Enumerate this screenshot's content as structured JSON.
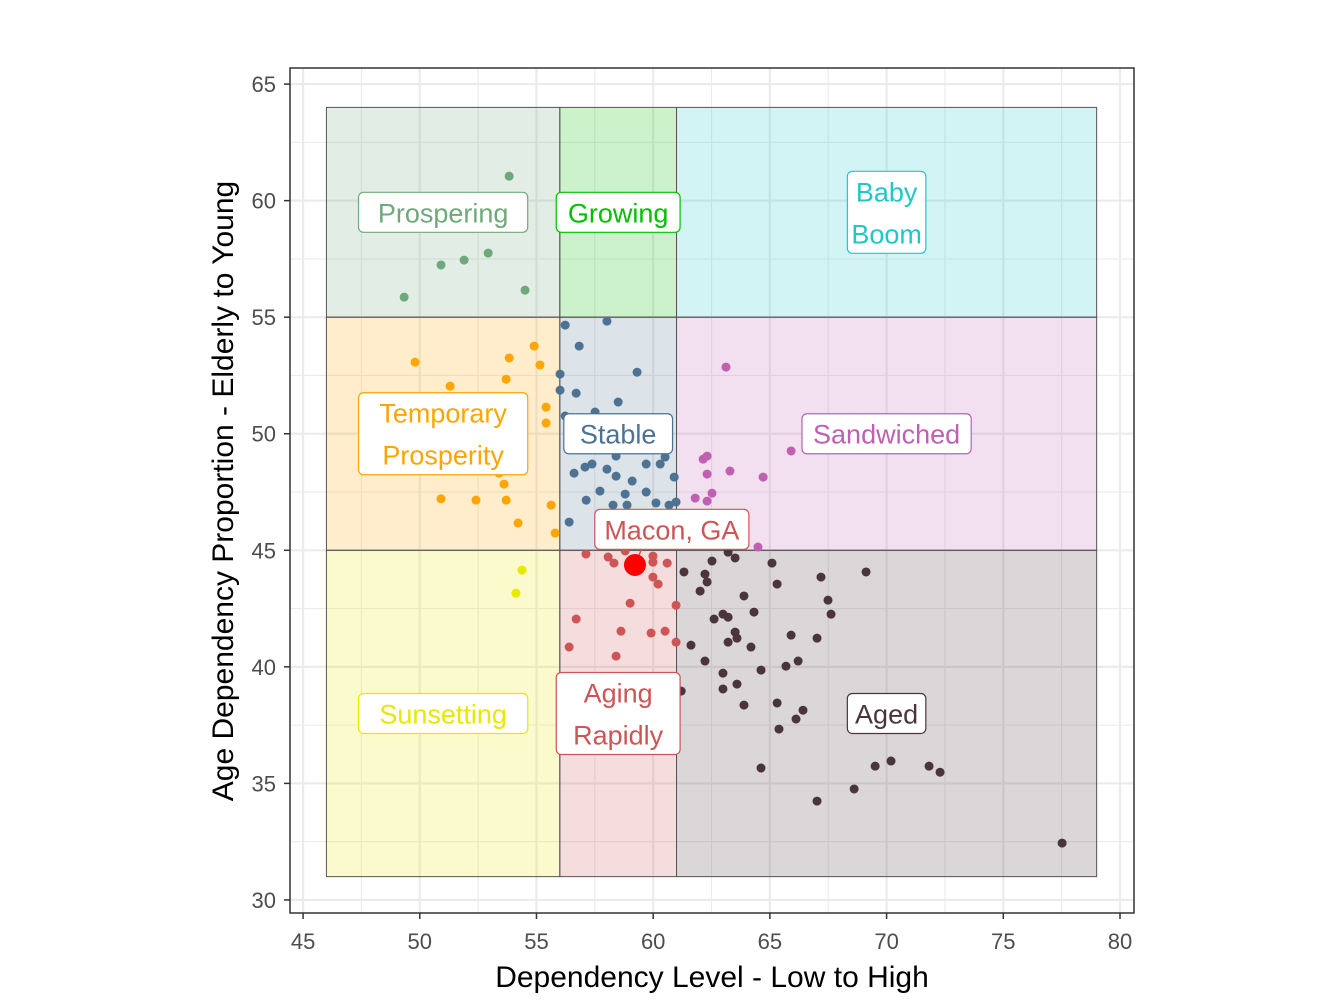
{
  "chart_data": {
    "type": "scatter",
    "title": "",
    "xlabel": "Dependency Level - Low to High",
    "ylabel": "Age Dependency Proportion - Elderly to Young",
    "xlim": [
      44.44,
      80.6
    ],
    "ylim": [
      29.44,
      65.69
    ],
    "xticks": [
      45,
      50,
      55,
      60,
      65,
      70,
      75,
      80
    ],
    "yticks": [
      30,
      35,
      40,
      45,
      50,
      55,
      60,
      65
    ],
    "grid": true,
    "regions": [
      {
        "name": "Prospering",
        "lines": [
          "Prospering"
        ],
        "color": "#6fa97b",
        "x": [
          46,
          56
        ],
        "y": [
          55,
          64
        ],
        "label_at": [
          51,
          59.5
        ]
      },
      {
        "name": "Growing",
        "lines": [
          "Growing"
        ],
        "color": "#00c000",
        "x": [
          56,
          61
        ],
        "y": [
          55,
          64
        ],
        "label_at": [
          58.5,
          59.5
        ]
      },
      {
        "name": "Baby Boom",
        "lines": [
          "Baby",
          "Boom"
        ],
        "color": "#1fc7c7",
        "x": [
          61,
          79
        ],
        "y": [
          55,
          64
        ],
        "label_at": [
          70,
          59.5
        ]
      },
      {
        "name": "Temporary Prosperity",
        "lines": [
          "Temporary",
          "Prosperity"
        ],
        "color": "#ffa500",
        "x": [
          46,
          56
        ],
        "y": [
          45,
          55
        ],
        "label_at": [
          51,
          50
        ]
      },
      {
        "name": "Stable",
        "lines": [
          "Stable"
        ],
        "color": "#4e7292",
        "x": [
          56,
          61
        ],
        "y": [
          45,
          55
        ],
        "label_at": [
          58.5,
          50
        ]
      },
      {
        "name": "Sandwiched",
        "lines": [
          "Sandwiched"
        ],
        "color": "#c060b0",
        "x": [
          61,
          79
        ],
        "y": [
          45,
          55
        ],
        "label_at": [
          70,
          50
        ]
      },
      {
        "name": "Sunsetting",
        "lines": [
          "Sunsetting"
        ],
        "color": "#e8e800",
        "x": [
          46,
          56
        ],
        "y": [
          31,
          45
        ],
        "label_at": [
          51,
          38
        ]
      },
      {
        "name": "Aging Rapidly",
        "lines": [
          "Aging",
          "Rapidly"
        ],
        "color": "#cd5555",
        "x": [
          56,
          61
        ],
        "y": [
          31,
          45
        ],
        "label_at": [
          58.5,
          38
        ]
      },
      {
        "name": "Aged",
        "lines": [
          "Aged"
        ],
        "color": "#4b353c",
        "x": [
          61,
          79
        ],
        "y": [
          31,
          45
        ],
        "label_at": [
          70,
          38
        ]
      }
    ],
    "highlight": {
      "name": "Macon, GA",
      "x": 59.22,
      "y": 44.37,
      "color": "#ff0000",
      "label_at": [
        60.8,
        45.9
      ]
    },
    "series": [
      {
        "name": "Prospering",
        "points": [
          [
            53.83,
            61.05
          ],
          [
            54.38,
            59.77
          ],
          [
            50.91,
            57.24
          ],
          [
            51.9,
            57.45
          ],
          [
            52.93,
            57.75
          ],
          [
            54.51,
            56.16
          ],
          [
            49.33,
            55.86
          ]
        ]
      },
      {
        "name": "Temporary Prosperity",
        "points": [
          [
            49.8,
            53.07
          ],
          [
            53.83,
            53.25
          ],
          [
            54.9,
            53.76
          ],
          [
            55.15,
            52.95
          ],
          [
            51.3,
            52.04
          ],
          [
            53.7,
            52.34
          ],
          [
            55.41,
            51.14
          ],
          [
            55.41,
            50.46
          ],
          [
            50.91,
            47.21
          ],
          [
            52.41,
            47.15
          ],
          [
            53.7,
            47.15
          ],
          [
            53.61,
            47.84
          ],
          [
            53.4,
            48.31
          ],
          [
            55.63,
            46.94
          ],
          [
            54.21,
            46.17
          ],
          [
            55.8,
            45.74
          ]
        ]
      },
      {
        "name": "Stable",
        "points": [
          [
            56.23,
            54.66
          ],
          [
            58.02,
            54.83
          ],
          [
            56.83,
            53.76
          ],
          [
            59.31,
            52.64
          ],
          [
            56.01,
            52.56
          ],
          [
            56.01,
            51.87
          ],
          [
            56.7,
            51.74
          ],
          [
            58.5,
            51.36
          ],
          [
            56.23,
            50.76
          ],
          [
            57.51,
            50.93
          ],
          [
            58.41,
            49.04
          ],
          [
            60.51,
            49.0
          ],
          [
            60.3,
            48.7
          ],
          [
            59.7,
            48.7
          ],
          [
            57.38,
            48.7
          ],
          [
            57.08,
            48.57
          ],
          [
            58.02,
            48.48
          ],
          [
            56.61,
            48.31
          ],
          [
            58.41,
            48.18
          ],
          [
            59.1,
            47.97
          ],
          [
            60.9,
            48.14
          ],
          [
            57.72,
            47.54
          ],
          [
            58.8,
            47.41
          ],
          [
            59.7,
            47.5
          ],
          [
            57.13,
            47.15
          ],
          [
            56.4,
            46.21
          ],
          [
            58.28,
            46.94
          ],
          [
            58.88,
            46.94
          ],
          [
            60.12,
            47.03
          ],
          [
            60.68,
            46.94
          ],
          [
            60.98,
            47.07
          ]
        ]
      },
      {
        "name": "Sandwiched",
        "points": [
          [
            63.12,
            52.86
          ],
          [
            65.91,
            49.26
          ],
          [
            62.14,
            48.91
          ],
          [
            62.31,
            49.04
          ],
          [
            62.31,
            48.27
          ],
          [
            63.29,
            48.4
          ],
          [
            64.71,
            48.14
          ],
          [
            61.8,
            47.24
          ],
          [
            62.52,
            47.45
          ],
          [
            62.31,
            47.11
          ],
          [
            64.49,
            45.14
          ]
        ]
      },
      {
        "name": "Sunsetting",
        "points": [
          [
            54.38,
            44.15
          ],
          [
            54.12,
            43.16
          ]
        ]
      },
      {
        "name": "Aging Rapidly",
        "points": [
          [
            57.12,
            44.84
          ],
          [
            58.07,
            44.71
          ],
          [
            58.32,
            44.45
          ],
          [
            58.8,
            44.97
          ],
          [
            59.99,
            44.75
          ],
          [
            59.99,
            44.49
          ],
          [
            60.6,
            44.45
          ],
          [
            59.99,
            43.85
          ],
          [
            60.21,
            43.55
          ],
          [
            60.98,
            42.64
          ],
          [
            59.01,
            42.73
          ],
          [
            56.7,
            42.05
          ],
          [
            58.62,
            41.53
          ],
          [
            59.91,
            41.45
          ],
          [
            60.51,
            41.53
          ],
          [
            60.98,
            41.06
          ],
          [
            56.4,
            40.85
          ],
          [
            58.41,
            40.46
          ]
        ]
      },
      {
        "name": "Aged",
        "points": [
          [
            63.21,
            44.92
          ],
          [
            63.51,
            44.67
          ],
          [
            62.52,
            44.54
          ],
          [
            61.32,
            44.07
          ],
          [
            65.09,
            44.45
          ],
          [
            62.22,
            43.98
          ],
          [
            62.31,
            43.64
          ],
          [
            62.01,
            43.25
          ],
          [
            65.31,
            43.55
          ],
          [
            67.19,
            43.85
          ],
          [
            69.12,
            44.07
          ],
          [
            63.89,
            43.04
          ],
          [
            67.49,
            42.86
          ],
          [
            67.62,
            42.26
          ],
          [
            64.32,
            42.35
          ],
          [
            62.99,
            42.26
          ],
          [
            63.21,
            42.13
          ],
          [
            62.61,
            42.05
          ],
          [
            63.51,
            41.49
          ],
          [
            63.59,
            41.23
          ],
          [
            63.21,
            41.06
          ],
          [
            61.62,
            40.93
          ],
          [
            64.19,
            40.85
          ],
          [
            65.91,
            41.36
          ],
          [
            67.02,
            41.23
          ],
          [
            62.22,
            40.25
          ],
          [
            64.62,
            39.86
          ],
          [
            65.69,
            40.03
          ],
          [
            66.21,
            40.25
          ],
          [
            62.99,
            39.73
          ],
          [
            63.59,
            39.26
          ],
          [
            62.99,
            39.05
          ],
          [
            61.2,
            38.96
          ],
          [
            63.89,
            38.36
          ],
          [
            65.31,
            38.45
          ],
          [
            66.42,
            38.14
          ],
          [
            66.12,
            37.76
          ],
          [
            65.39,
            37.33
          ],
          [
            64.62,
            35.66
          ],
          [
            69.51,
            35.74
          ],
          [
            70.19,
            35.96
          ],
          [
            68.61,
            34.76
          ],
          [
            67.02,
            34.24
          ],
          [
            71.82,
            35.74
          ],
          [
            72.29,
            35.48
          ],
          [
            77.52,
            32.44
          ]
        ]
      }
    ]
  }
}
